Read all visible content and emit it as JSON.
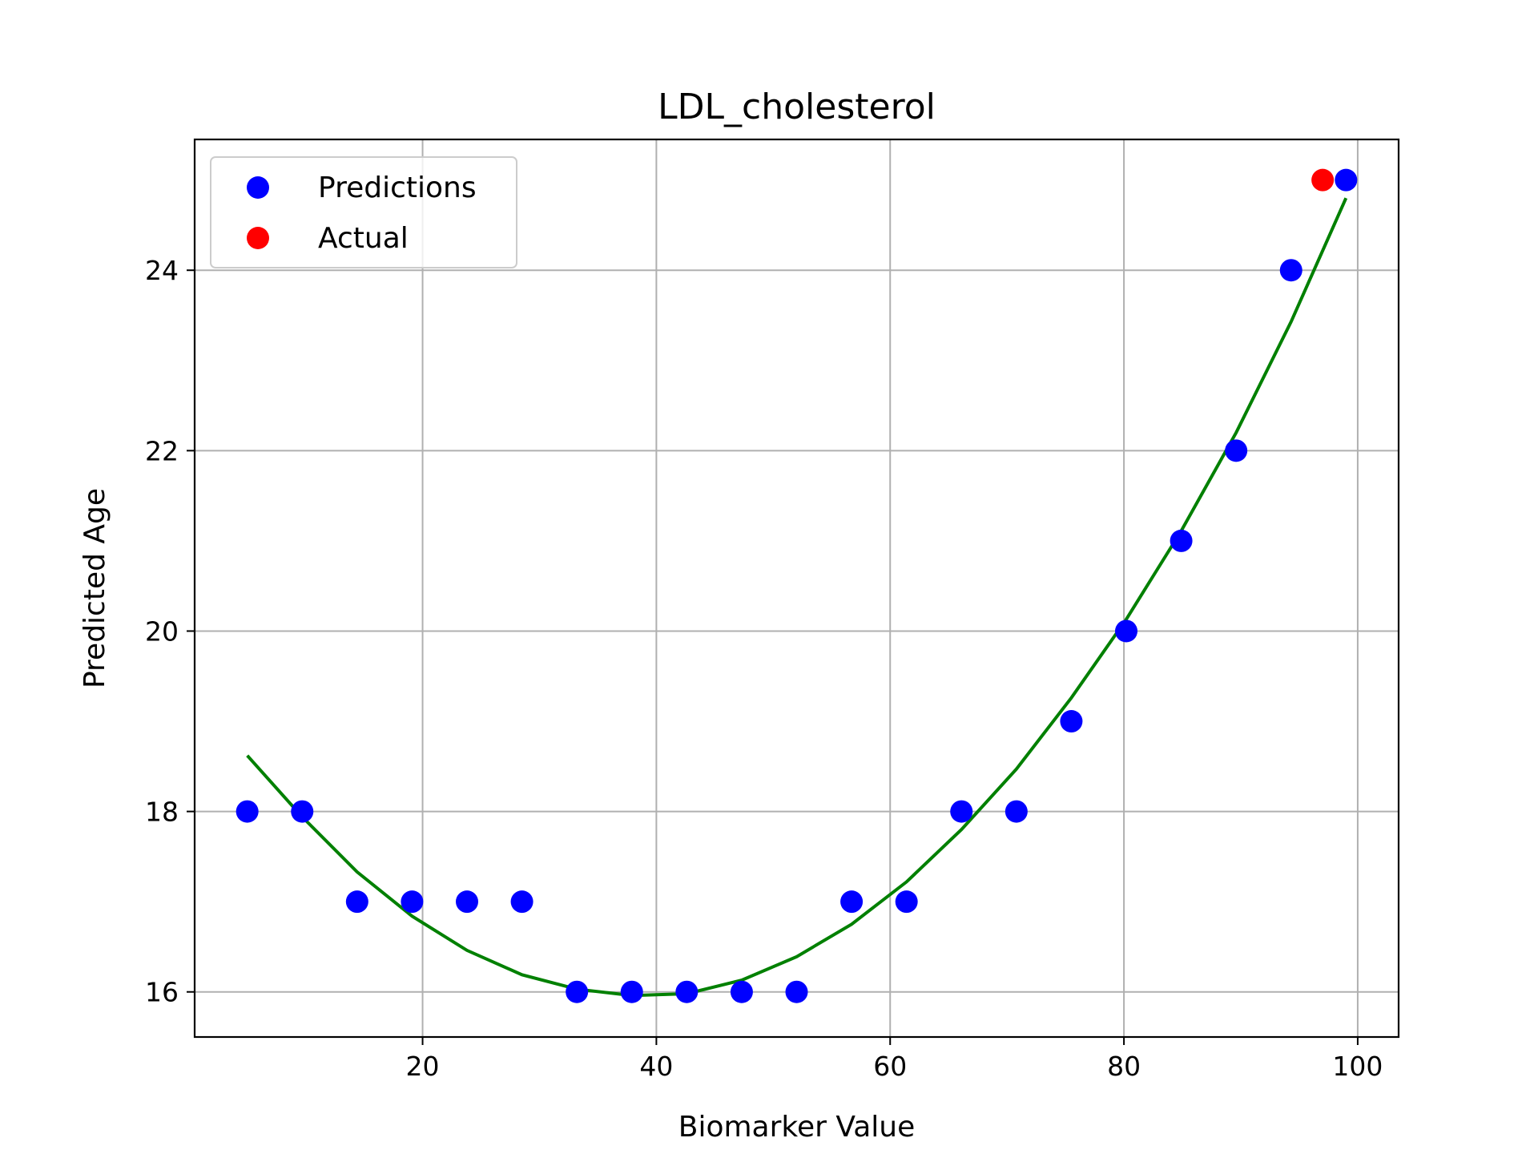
{
  "chart_data": {
    "type": "scatter",
    "title": "LDL_cholesterol",
    "xlabel": "Biomarker Value",
    "ylabel": "Predicted Age",
    "xlim": [
      0.5,
      103.5
    ],
    "ylim": [
      15.5,
      25.45
    ],
    "xticks": [
      20,
      40,
      60,
      80,
      100
    ],
    "yticks": [
      16,
      18,
      20,
      22,
      24
    ],
    "grid": true,
    "legend_position": "top-left",
    "series": [
      {
        "name": "Predictions",
        "kind": "scatter",
        "color": "#0000ff",
        "x": [
          5,
          9.7,
          14.4,
          19.1,
          23.8,
          28.5,
          33.2,
          37.9,
          42.6,
          47.3,
          52,
          56.7,
          61.4,
          66.1,
          70.8,
          75.5,
          80.2,
          84.9,
          89.6,
          94.3,
          99
        ],
        "y": [
          18,
          18,
          17,
          17,
          17,
          17,
          16,
          16,
          16,
          16,
          16,
          17,
          17,
          18,
          18,
          19,
          20,
          21,
          22,
          24,
          25
        ]
      },
      {
        "name": "Actual",
        "kind": "scatter",
        "color": "#ff0000",
        "x": [
          97
        ],
        "y": [
          25
        ]
      },
      {
        "kind": "line",
        "color": "#008000",
        "x": [
          5,
          9.7,
          14.4,
          19.1,
          23.8,
          28.5,
          33.2,
          37.9,
          42.6,
          47.3,
          52,
          56.7,
          61.4,
          66.1,
          70.8,
          75.5,
          80.2,
          84.9,
          89.6,
          94.3,
          99
        ],
        "y": [
          18.62,
          17.94,
          17.33,
          16.84,
          16.46,
          16.19,
          16.03,
          15.96,
          15.98,
          16.13,
          16.39,
          16.75,
          17.22,
          17.8,
          18.47,
          19.26,
          20.13,
          21.11,
          22.2,
          23.43,
          24.8
        ]
      }
    ]
  }
}
